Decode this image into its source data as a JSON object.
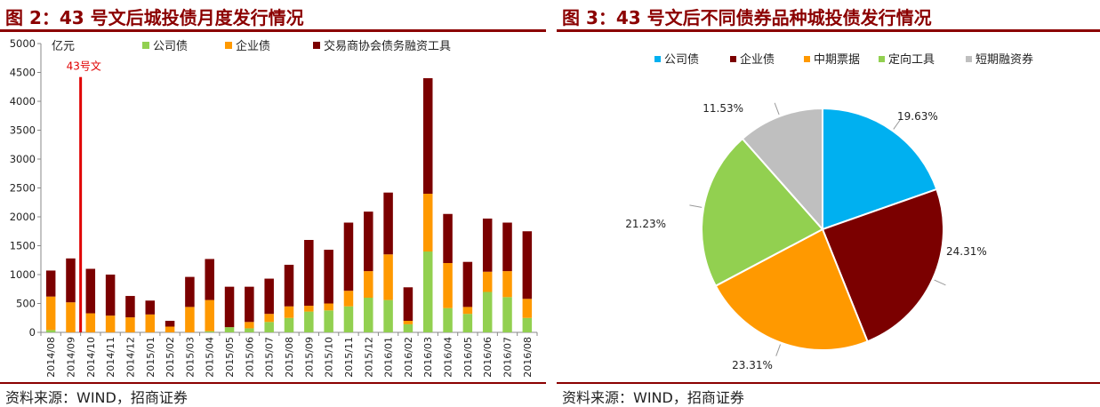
{
  "left": {
    "title": "图 2：43 号文后城投债月度发行情况",
    "source": "资料来源：WIND，招商证券",
    "unit": "亿元",
    "annotation": "43号文",
    "colors": {
      "公司债": "#92D050",
      "企业债": "#FF9900",
      "交易商协会债务融资工具": "#7B0000",
      "annotation": "#E00000"
    }
  },
  "right": {
    "title": "图 3：43 号文后不同债券品种城投债发行情况",
    "source": "资料来源：WIND，招商证券"
  },
  "chart_data": [
    {
      "type": "bar",
      "stacked": true,
      "categories": [
        "2014/08",
        "2014/09",
        "2014/10",
        "2014/11",
        "2014/12",
        "2015/01",
        "2015/02",
        "2015/03",
        "2015/04",
        "2015/05",
        "2015/06",
        "2015/07",
        "2015/08",
        "2015/09",
        "2015/10",
        "2015/11",
        "2015/12",
        "2016/01",
        "2016/02",
        "2016/03",
        "2016/04",
        "2016/05",
        "2016/06",
        "2016/07",
        "2016/08"
      ],
      "series": [
        {
          "name": "公司债",
          "values": [
            40,
            0,
            0,
            0,
            0,
            0,
            0,
            0,
            20,
            90,
            70,
            180,
            250,
            360,
            380,
            450,
            600,
            560,
            140,
            1400,
            420,
            320,
            700,
            610,
            250
          ]
        },
        {
          "name": "企业债",
          "values": [
            580,
            520,
            330,
            290,
            260,
            310,
            100,
            440,
            540,
            0,
            110,
            140,
            200,
            100,
            120,
            270,
            460,
            790,
            60,
            1000,
            780,
            120,
            350,
            450,
            330
          ]
        },
        {
          "name": "交易商协会债务融资工具",
          "values": [
            450,
            760,
            770,
            710,
            370,
            240,
            100,
            520,
            710,
            700,
            610,
            610,
            720,
            1140,
            930,
            1180,
            1030,
            1070,
            580,
            2000,
            850,
            780,
            920,
            840,
            1170
          ]
        }
      ],
      "ylabel": "亿元",
      "ylim": [
        0,
        5000
      ],
      "yticks": [
        0,
        500,
        1000,
        1500,
        2000,
        2500,
        3000,
        3500,
        4000,
        4500,
        5000
      ],
      "legend": "top",
      "annotation": {
        "text": "43号文",
        "between": [
          "2014/09",
          "2014/10"
        ]
      }
    },
    {
      "type": "pie",
      "labels": [
        "公司债",
        "企业债",
        "中期票据",
        "定向工具",
        "短期融资券"
      ],
      "values": [
        19.63,
        24.31,
        23.31,
        21.23,
        11.53
      ],
      "value_labels": [
        "19.63%",
        "24.31%",
        "23.31%",
        "21.23%",
        "11.53%"
      ],
      "colors": [
        "#00B0F0",
        "#7B0000",
        "#FF9900",
        "#92D050",
        "#BFBFBF"
      ],
      "legend": "top"
    }
  ]
}
